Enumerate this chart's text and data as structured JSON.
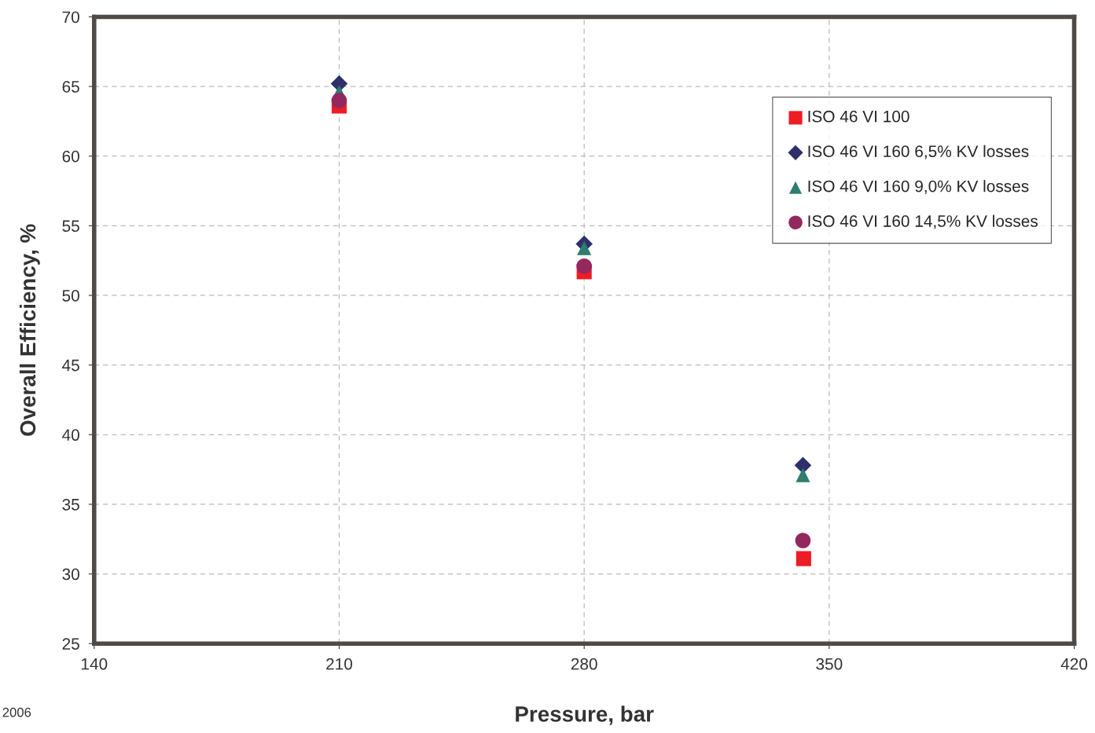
{
  "chart_data": {
    "type": "scatter",
    "xlabel": "Pressure, bar",
    "ylabel": "Overall Efficiency, %",
    "annotations": [
      "2006"
    ],
    "xlim": [
      140,
      420
    ],
    "xticks": [
      140,
      210,
      280,
      350,
      420
    ],
    "ylim": [
      25,
      70
    ],
    "yticks": [
      25,
      30,
      35,
      40,
      45,
      50,
      55,
      60,
      65,
      70
    ],
    "grid": true,
    "legend": "top right",
    "series": [
      {
        "name": "ISO 46 VI 100",
        "color": "#ee1c25",
        "marker": "square",
        "x": [
          210,
          280,
          342.7
        ],
        "values": [
          63.6,
          51.7,
          31.1
        ]
      },
      {
        "name": "ISO 46 VI 160 6,5% KV losses",
        "color": "#2e2f6b",
        "marker": "diamond",
        "x": [
          210,
          280,
          342.5
        ],
        "values": [
          65.2,
          53.7,
          37.8
        ]
      },
      {
        "name": "ISO 46 VI 160 9,0% KV losses",
        "color": "#2e7d6e",
        "marker": "triangle",
        "x": [
          210,
          280,
          342.5
        ],
        "values": [
          64.6,
          53.4,
          37.1
        ]
      },
      {
        "name": "ISO 46 VI 160 14,5% KV losses",
        "color": "#93285e",
        "marker": "circle",
        "x": [
          210,
          280,
          342.5
        ],
        "values": [
          64.0,
          52.1,
          32.4
        ]
      }
    ]
  }
}
